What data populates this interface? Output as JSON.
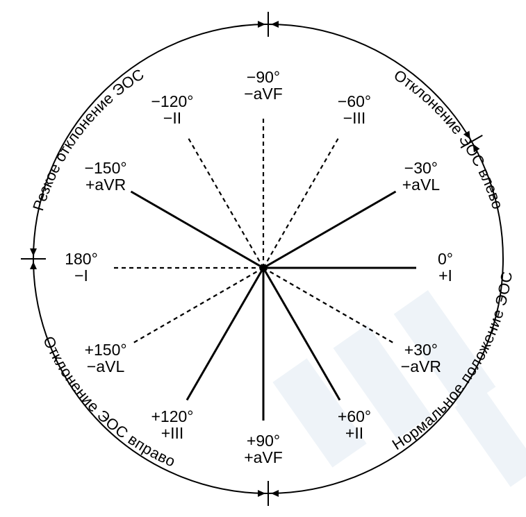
{
  "colors": {
    "ink": "#000000",
    "background": "#ffffff",
    "watermark": "#eef3f8"
  },
  "leads": [
    {
      "id": "aVF-neg",
      "angle": -90,
      "style": "dashed",
      "line1": "−90°",
      "line2": "−aVF"
    },
    {
      "id": "III-neg",
      "angle": -60,
      "style": "dashed",
      "line1": "−60°",
      "line2": "−III"
    },
    {
      "id": "aVL-pos",
      "angle": -30,
      "style": "solid",
      "line1": "−30°",
      "line2": "+aVL"
    },
    {
      "id": "I-pos",
      "angle": 0,
      "style": "solid",
      "line1": "0°",
      "line2": "+I"
    },
    {
      "id": "aVR-neg",
      "angle": 30,
      "style": "dashed",
      "line1": "+30°",
      "line2": "−aVR"
    },
    {
      "id": "II-pos",
      "angle": 60,
      "style": "solid",
      "line1": "+60°",
      "line2": "+II"
    },
    {
      "id": "aVF-pos",
      "angle": 90,
      "style": "solid",
      "line1": "+90°",
      "line2": "+aVF"
    },
    {
      "id": "III-pos",
      "angle": 120,
      "style": "solid",
      "line1": "+120°",
      "line2": "+III"
    },
    {
      "id": "aVL-neg",
      "angle": 150,
      "style": "dashed",
      "line1": "+150°",
      "line2": "−aVL"
    },
    {
      "id": "I-neg",
      "angle": 180,
      "style": "dashed",
      "line1": "180°",
      "line2": "−I"
    },
    {
      "id": "aVR-pos",
      "angle": -150,
      "style": "solid",
      "line1": "−150°",
      "line2": "+aVR"
    },
    {
      "id": "II-neg",
      "angle": -120,
      "style": "dashed",
      "line1": "−120°",
      "line2": "−II"
    }
  ],
  "sectors": [
    {
      "id": "left-deviation",
      "label": "Отклонение ЭОС влево"
    },
    {
      "id": "normal-position",
      "label": "Нормальное положение ЭОС"
    },
    {
      "id": "right-deviation",
      "label": "Отклонение ЭОС вправо"
    },
    {
      "id": "extreme-deviation",
      "label": "Резкое отклонение ЭОС"
    }
  ]
}
